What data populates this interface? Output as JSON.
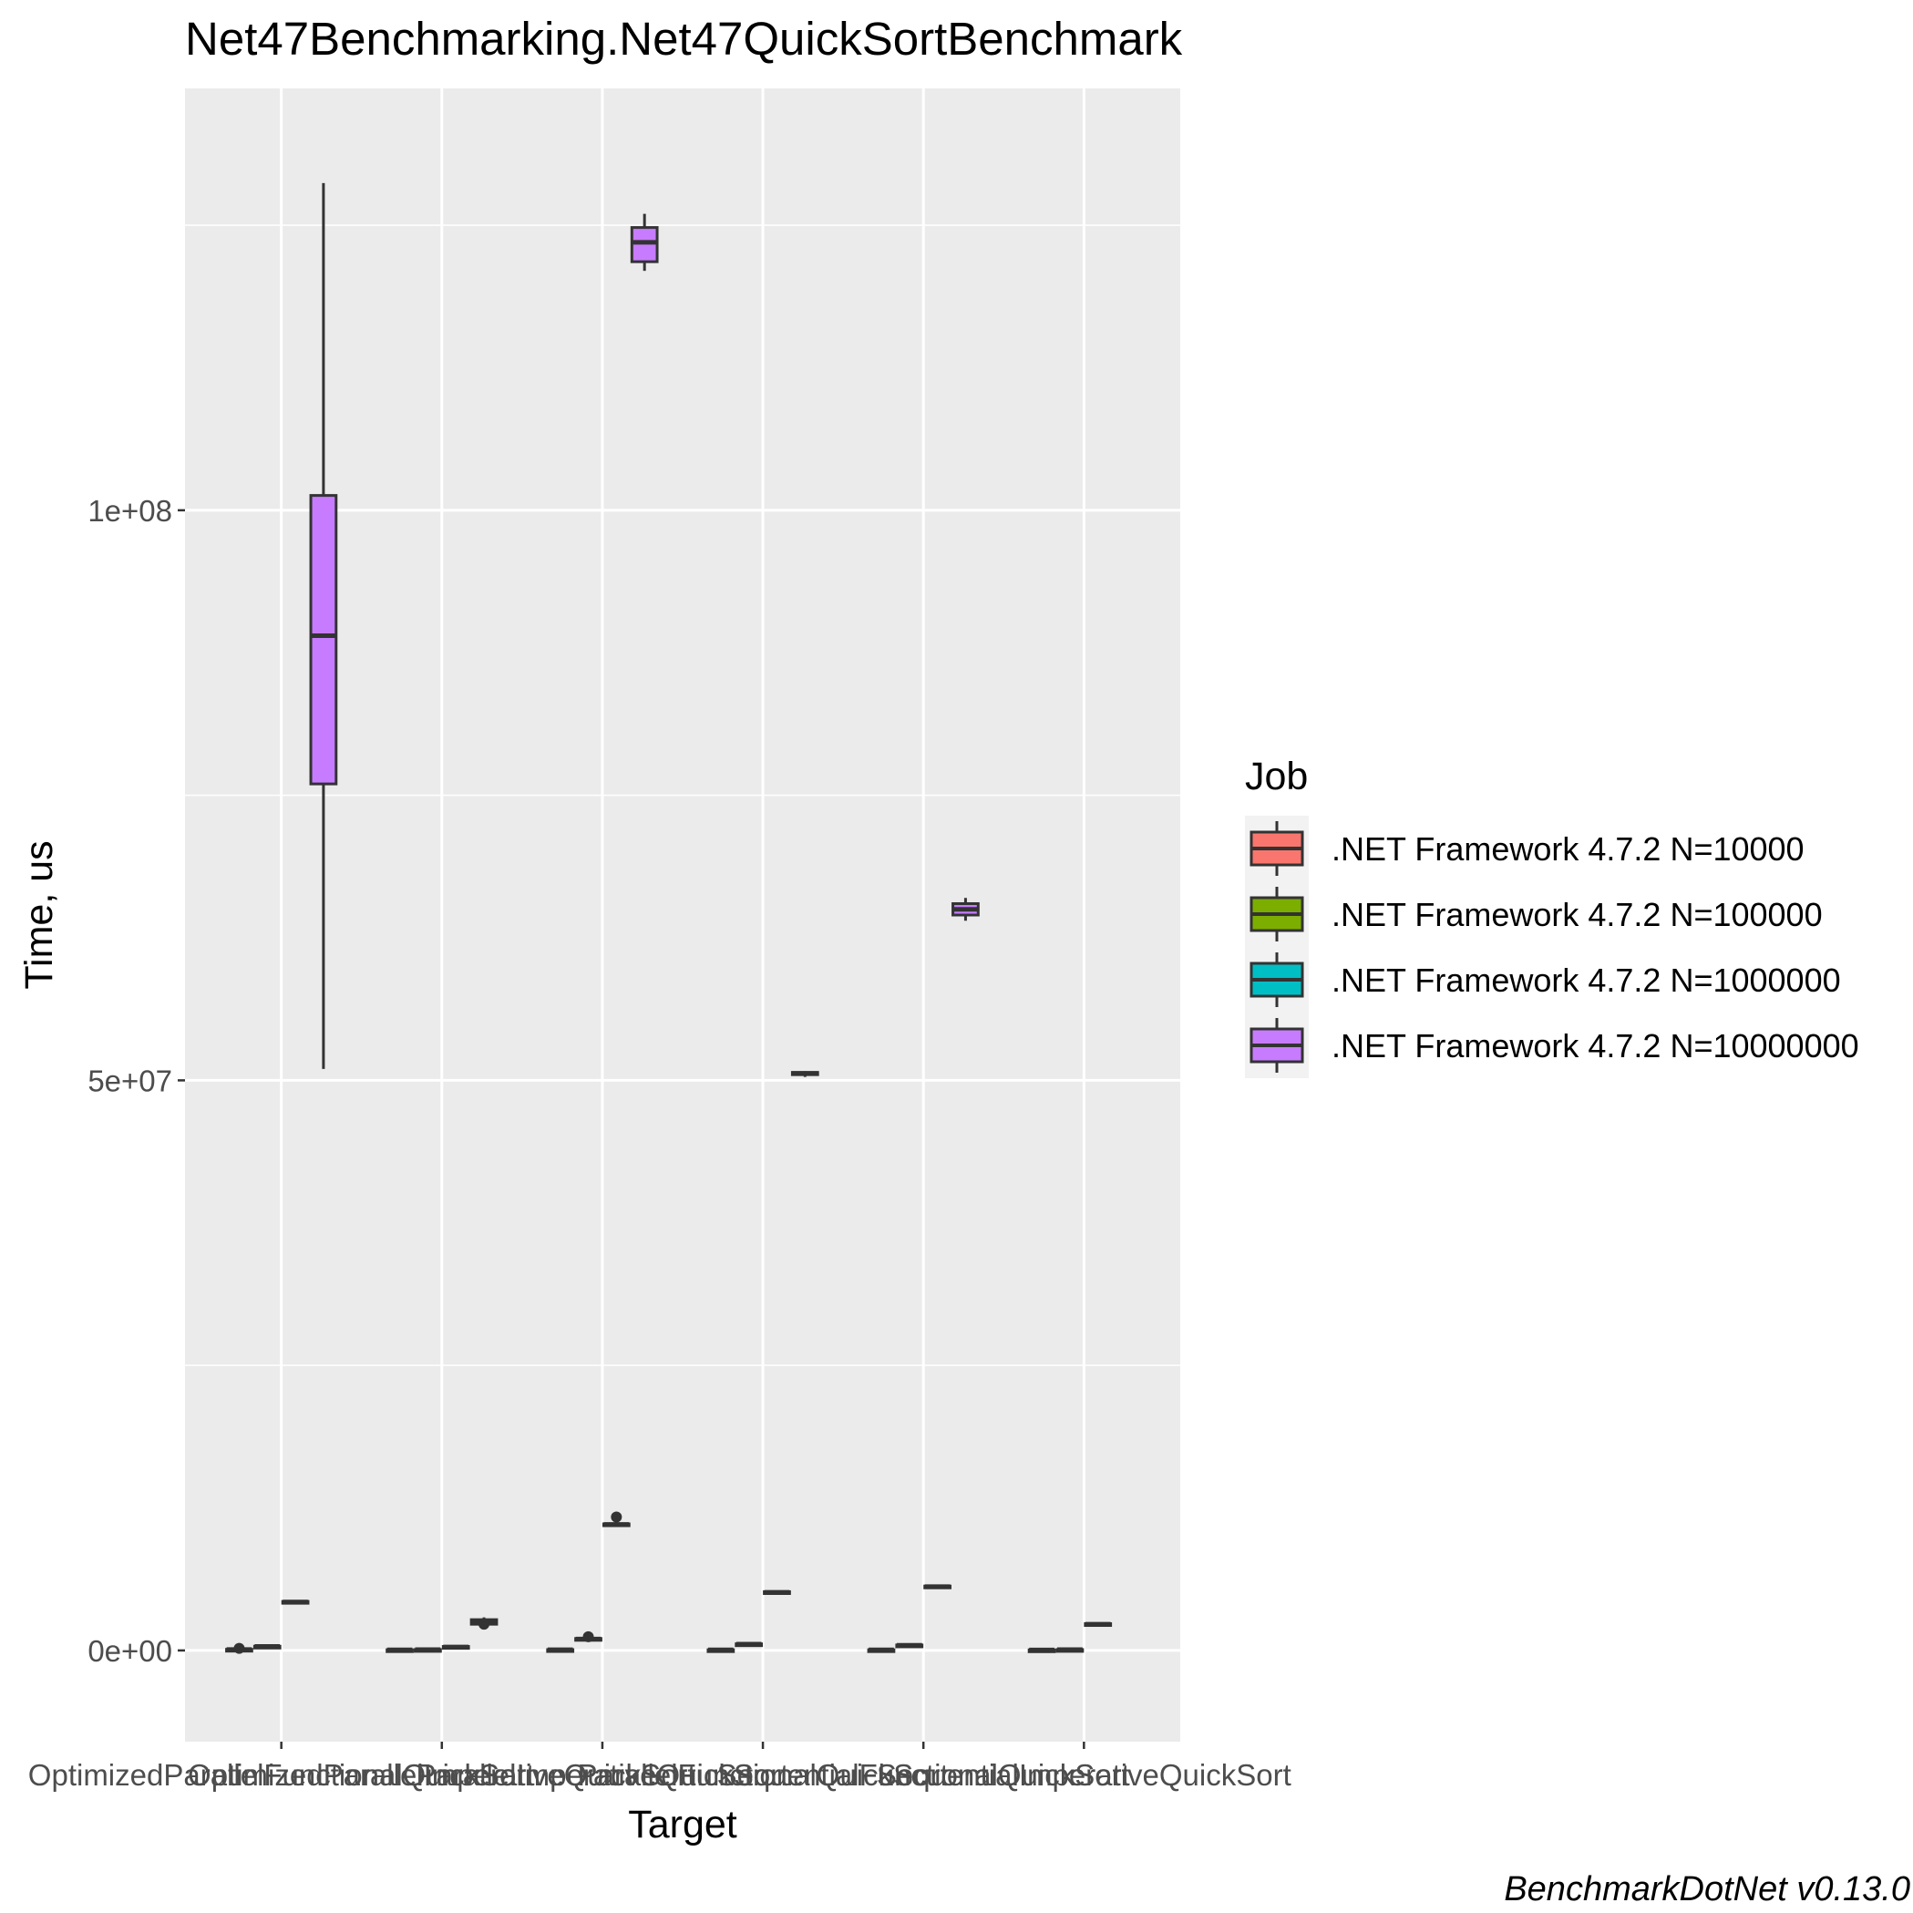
{
  "chart_data": {
    "type": "box",
    "title": "Net47Benchmarking.Net47QuickSortBenchmark",
    "xlabel": "Target",
    "ylabel": "Time, us",
    "caption": "BenchmarkDotNet v0.13.0",
    "ylim": [
      -8000000,
      137000000
    ],
    "y_ticks": [
      {
        "value": 0,
        "label": "0e+00"
      },
      {
        "value": 50000000,
        "label": "5e+07"
      },
      {
        "value": 100000000,
        "label": "1e+08"
      }
    ],
    "categories": [
      "OptimizedParallelFunctionalQuickSort",
      "OptimizedParallelImperativeQuickSort",
      "ParallelImperativeQuickSort",
      "ParallelFunctionalQuickSort",
      "SequentialFunctionalQuickSort",
      "SequentialImperativeQuickSort"
    ],
    "x_tick_labels_text": [
      "OptimizedParallelFunctionalQuickSort",
      "OptimizedParallelImperativeQuickSort",
      "ParallelImperativeQuickSort",
      "ParallelFunctionalQuickSort",
      "SequentialFunctionalQuickSort",
      "SequentialImperativeQuickSort"
    ],
    "grid": true,
    "legend": {
      "title": "Job",
      "position": "right",
      "entries": [
        {
          "name": ".NET Framework 4.7.2 N=10000",
          "color": "#F8766D"
        },
        {
          "name": ".NET Framework 4.7.2 N=100000",
          "color": "#7CAE00"
        },
        {
          "name": ".NET Framework 4.7.2 N=1000000",
          "color": "#00BFC4"
        },
        {
          "name": ".NET Framework 4.7.2 N=10000000",
          "color": "#C77CFF"
        }
      ]
    },
    "series": [
      {
        "name": ".NET Framework 4.7.2 N=10000",
        "color": "#F8766D",
        "boxes": [
          {
            "min": 50000,
            "q1": 60000,
            "median": 80000,
            "q3": 100000,
            "max": 120000,
            "outliers": [
              180000
            ]
          },
          {
            "min": 30000,
            "q1": 40000,
            "median": 50000,
            "q3": 60000,
            "max": 70000,
            "outliers": []
          },
          {
            "min": 40000,
            "q1": 50000,
            "median": 60000,
            "q3": 70000,
            "max": 80000,
            "outliers": []
          },
          {
            "min": 30000,
            "q1": 40000,
            "median": 50000,
            "q3": 60000,
            "max": 70000,
            "outliers": []
          },
          {
            "min": 30000,
            "q1": 40000,
            "median": 50000,
            "q3": 60000,
            "max": 70000,
            "outliers": []
          },
          {
            "min": 20000,
            "q1": 30000,
            "median": 40000,
            "q3": 50000,
            "max": 60000,
            "outliers": []
          }
        ]
      },
      {
        "name": ".NET Framework 4.7.2 N=100000",
        "color": "#7CAE00",
        "boxes": [
          {
            "min": 300000,
            "q1": 330000,
            "median": 350000,
            "q3": 370000,
            "max": 400000,
            "outliers": []
          },
          {
            "min": 50000,
            "q1": 60000,
            "median": 70000,
            "q3": 80000,
            "max": 90000,
            "outliers": []
          },
          {
            "min": 900000,
            "q1": 950000,
            "median": 1000000,
            "q3": 1050000,
            "max": 1100000,
            "outliers": [
              1200000
            ]
          },
          {
            "min": 500000,
            "q1": 520000,
            "median": 550000,
            "q3": 580000,
            "max": 600000,
            "outliers": []
          },
          {
            "min": 400000,
            "q1": 420000,
            "median": 450000,
            "q3": 480000,
            "max": 500000,
            "outliers": []
          },
          {
            "min": 50000,
            "q1": 60000,
            "median": 70000,
            "q3": 80000,
            "max": 90000,
            "outliers": []
          }
        ]
      },
      {
        "name": ".NET Framework 4.7.2 N=1000000",
        "color": "#00BFC4",
        "boxes": [
          {
            "min": 4100000,
            "q1": 4200000,
            "median": 4250000,
            "q3": 4300000,
            "max": 4400000,
            "outliers": []
          },
          {
            "min": 200000,
            "q1": 250000,
            "median": 300000,
            "q3": 350000,
            "max": 400000,
            "outliers": []
          },
          {
            "min": 10900000,
            "q1": 11000000,
            "median": 11050000,
            "q3": 11100000,
            "max": 11300000,
            "outliers": [
              11700000
            ]
          },
          {
            "min": 5000000,
            "q1": 5050000,
            "median": 5100000,
            "q3": 5150000,
            "max": 5200000,
            "outliers": []
          },
          {
            "min": 5500000,
            "q1": 5550000,
            "median": 5600000,
            "q3": 5650000,
            "max": 5700000,
            "outliers": []
          },
          {
            "min": 2200000,
            "q1": 2250000,
            "median": 2300000,
            "q3": 2350000,
            "max": 2400000,
            "outliers": []
          }
        ]
      },
      {
        "name": ".NET Framework 4.7.2 N=10000000",
        "color": "#C77CFF",
        "boxes": [
          {
            "min": 51000000,
            "q1": 76000000,
            "median": 89000000,
            "q3": 101300000,
            "max": 128700000,
            "outliers": []
          },
          {
            "min": 2000000,
            "q1": 2300000,
            "median": 2500000,
            "q3": 2700000,
            "max": 2900000,
            "outliers": [
              2300000
            ]
          },
          {
            "min": 121000000,
            "q1": 121800000,
            "median": 123500000,
            "q3": 124800000,
            "max": 126000000,
            "outliers": []
          },
          {
            "min": 50300000,
            "q1": 50500000,
            "median": 50600000,
            "q3": 50700000,
            "max": 50800000,
            "outliers": []
          },
          {
            "min": 64000000,
            "q1": 64500000,
            "median": 65000000,
            "q3": 65500000,
            "max": 66000000,
            "outliers": []
          },
          null
        ]
      }
    ]
  }
}
